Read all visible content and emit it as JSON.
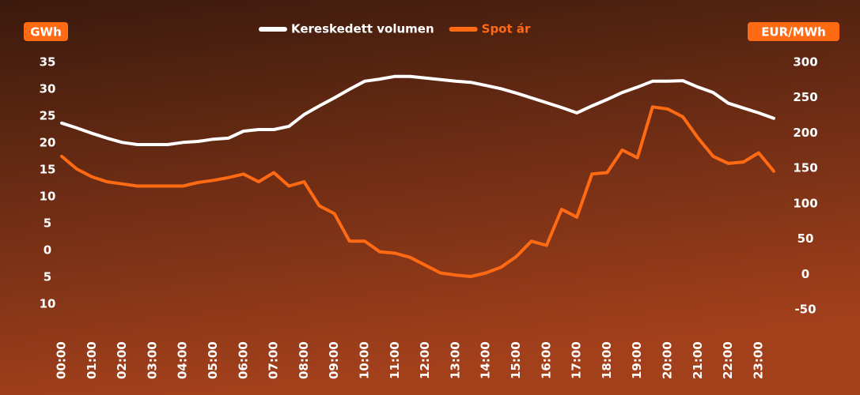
{
  "chart_data": {
    "type": "line",
    "y_label": "GWh",
    "y2_label": "EUR/MWh",
    "x": [
      0,
      0.5,
      1,
      1.5,
      2,
      2.5,
      3,
      3.5,
      4,
      4.5,
      5,
      5.5,
      6,
      6.5,
      7,
      7.5,
      8,
      8.5,
      9,
      9.5,
      10,
      10.5,
      11,
      11.5,
      12,
      12.5,
      13,
      13.5,
      14,
      14.5,
      15,
      15.5,
      16,
      16.5,
      17,
      17.5,
      18,
      18.5,
      19,
      19.5,
      20,
      20.5,
      21,
      21.5,
      22,
      22.5,
      23,
      23.5
    ],
    "xlim": [
      0,
      23.5
    ],
    "xticks": [
      {
        "value": 0,
        "label": "00:00"
      },
      {
        "value": 1,
        "label": "01:00"
      },
      {
        "value": 2,
        "label": "02:00"
      },
      {
        "value": 3,
        "label": "03:00"
      },
      {
        "value": 4,
        "label": "04:00"
      },
      {
        "value": 5,
        "label": "05:00"
      },
      {
        "value": 6,
        "label": "06:00"
      },
      {
        "value": 7,
        "label": "07:00"
      },
      {
        "value": 8,
        "label": "08:00"
      },
      {
        "value": 9,
        "label": "09:00"
      },
      {
        "value": 10,
        "label": "10:00"
      },
      {
        "value": 11,
        "label": "11:00"
      },
      {
        "value": 12,
        "label": "12:00"
      },
      {
        "value": 13,
        "label": "13:00"
      },
      {
        "value": 14,
        "label": "14:00"
      },
      {
        "value": 15,
        "label": "15:00"
      },
      {
        "value": 16,
        "label": "16:00"
      },
      {
        "value": 17,
        "label": "17:00"
      },
      {
        "value": 18,
        "label": "18:00"
      },
      {
        "value": 19,
        "label": "19:00"
      },
      {
        "value": 20,
        "label": "20:00"
      },
      {
        "value": 21,
        "label": "21:00"
      },
      {
        "value": 22,
        "label": "22:00"
      },
      {
        "value": 23,
        "label": "23:00"
      }
    ],
    "ylim": [
      -10,
      35
    ],
    "yticks": [
      35,
      30,
      25,
      20,
      15,
      10,
      5,
      0,
      {
        "value": -5,
        "label": "5"
      },
      {
        "value": -10,
        "label": "10"
      }
    ],
    "y2lim": [
      -50,
      300
    ],
    "y2ticks": [
      300,
      250,
      200,
      150,
      100,
      50,
      0,
      -50
    ],
    "series": [
      {
        "name": "Kereskedett volumen",
        "color": "#ffffff",
        "values": [
          23.7,
          22.8,
          21.8,
          20.9,
          20.1,
          19.7,
          19.7,
          19.7,
          20.1,
          20.3,
          20.7,
          20.9,
          22.2,
          22.5,
          22.5,
          23.1,
          25.3,
          26.9,
          28.4,
          30.0,
          31.5,
          31.9,
          32.4,
          32.4,
          32.1,
          31.8,
          31.5,
          31.3,
          30.7,
          30.1,
          29.3,
          28.4,
          27.5,
          26.6,
          25.6,
          26.9,
          28.1,
          29.4,
          30.4,
          31.5,
          31.5,
          31.6,
          30.4,
          29.4,
          27.4,
          26.5,
          25.6,
          24.6
        ]
      },
      {
        "name": "Spot ár",
        "color": "#ff6a13",
        "axis": "y2",
        "values": [
          167,
          149,
          138,
          131,
          128,
          125,
          125,
          125,
          125,
          130,
          133,
          137,
          142,
          131,
          144,
          125,
          131,
          97,
          86,
          47,
          47,
          32,
          30,
          24,
          13,
          2,
          -1,
          -3,
          2,
          10,
          25,
          47,
          41,
          92,
          81,
          142,
          144,
          176,
          165,
          237,
          234,
          223,
          193,
          167,
          157,
          159,
          172,
          146
        ]
      }
    ]
  }
}
